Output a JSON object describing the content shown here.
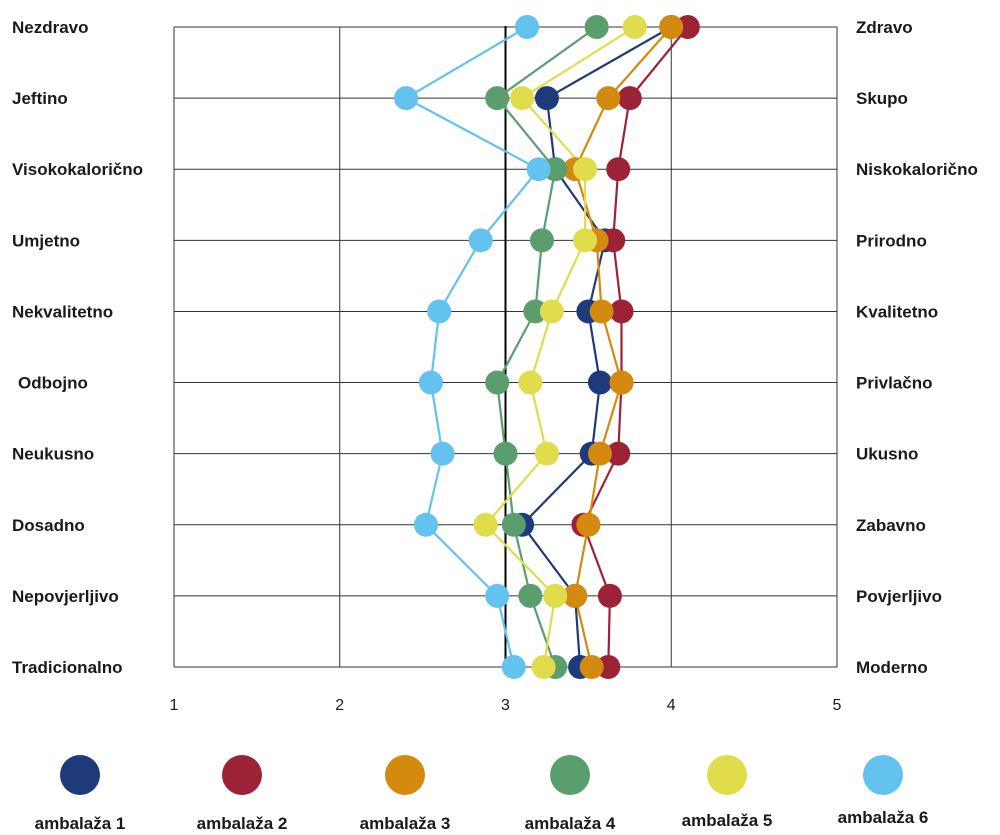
{
  "chart_data": {
    "type": "line",
    "xlim": [
      1,
      5
    ],
    "x_ticks": [
      "1",
      "2",
      "3",
      "4",
      "5"
    ],
    "reference_line": 3,
    "grid": true,
    "legend_position": "bottom",
    "left_labels": [
      "Nezdravo",
      "Jeftino",
      "Visokokalorično",
      "Umjetno",
      "Nekvalitetno",
      "Odbojno",
      "Neukusno",
      "Dosadno",
      "Nepovjerljivo",
      "Tradicionalno"
    ],
    "right_labels": [
      "Zdravo",
      "Skupo",
      "Niskokalorično",
      "Prirodno",
      "Kvalitetno",
      "Privlačno",
      "Ukusno",
      "Zabavno",
      "Povjerljivo",
      "Moderno"
    ],
    "series": [
      {
        "name": "ambalaža 1",
        "color": "#1f3a7a",
        "values": [
          4.0,
          3.25,
          3.3,
          3.6,
          3.5,
          3.57,
          3.52,
          3.1,
          3.42,
          3.45
        ]
      },
      {
        "name": "ambalaža 2",
        "color": "#9b2335",
        "values": [
          4.1,
          3.75,
          3.68,
          3.65,
          3.7,
          3.7,
          3.68,
          3.47,
          3.63,
          3.62
        ]
      },
      {
        "name": "ambalaža 3",
        "color": "#d4890f",
        "values": [
          4.0,
          3.62,
          3.42,
          3.55,
          3.58,
          3.7,
          3.57,
          3.5,
          3.42,
          3.52
        ]
      },
      {
        "name": "ambalaža 4",
        "color": "#5a9e6e",
        "values": [
          3.55,
          2.95,
          3.3,
          3.22,
          3.18,
          2.95,
          3.0,
          3.05,
          3.15,
          3.3
        ]
      },
      {
        "name": "ambalaža 5",
        "color": "#e0dc4c",
        "values": [
          3.78,
          3.1,
          3.48,
          3.48,
          3.28,
          3.15,
          3.25,
          2.88,
          3.3,
          3.23
        ]
      },
      {
        "name": "ambalaža 6",
        "color": "#63c2ee",
        "values": [
          3.13,
          2.4,
          3.2,
          2.85,
          2.6,
          2.55,
          2.62,
          2.52,
          2.95,
          3.05
        ]
      }
    ]
  }
}
